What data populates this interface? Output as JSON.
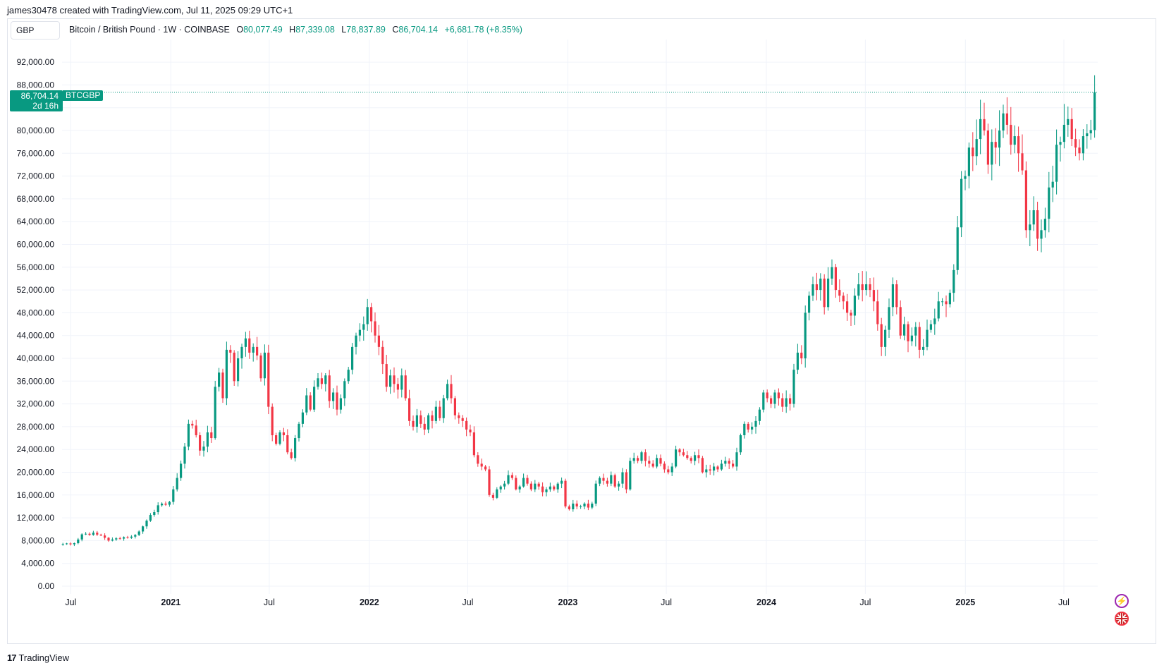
{
  "header": {
    "credit": "james30478 created with TradingView.com, Jul 11, 2025 09:29 UTC+1"
  },
  "toolbar": {
    "currency": "GBP"
  },
  "legend": {
    "symbol_desc": "Bitcoin / British Pound · 1W · COINBASE",
    "open_key": "O",
    "open": "80,077.49",
    "high_key": "H",
    "high": "87,339.08",
    "low_key": "L",
    "low": "78,837.89",
    "close_key": "C",
    "close": "86,704.14",
    "change": "+6,681.78 (+8.35%)"
  },
  "last_price": {
    "price": "86,704.14",
    "countdown": "2d 16h",
    "symbol": "BTCGBP"
  },
  "footer": {
    "brand_mark": "17",
    "brand_name": "TradingView"
  },
  "icons": {
    "lightning": "lightning-icon",
    "flag": "uk-flag-icon"
  },
  "colors": {
    "up": "#089981",
    "down": "#f23645",
    "grid": "#f0f3fa",
    "axis_text": "#131722"
  },
  "chart_data": {
    "type": "candlestick",
    "timeframe": "1W",
    "ylim": [
      0,
      96000
    ],
    "y_ticks": [
      "0.00",
      "4,000.00",
      "8,000.00",
      "12,000.00",
      "16,000.00",
      "20,000.00",
      "24,000.00",
      "28,000.00",
      "32,000.00",
      "36,000.00",
      "40,000.00",
      "44,000.00",
      "48,000.00",
      "52,000.00",
      "56,000.00",
      "60,000.00",
      "64,000.00",
      "68,000.00",
      "72,000.00",
      "76,000.00",
      "80,000.00",
      "84,000.00",
      "88,000.00",
      "92,000.00"
    ],
    "x_ticks": [
      {
        "label": "Jul",
        "date": "2020-07-01",
        "bold": false
      },
      {
        "label": "2021",
        "date": "2021-01-01",
        "bold": true
      },
      {
        "label": "Jul",
        "date": "2021-07-01",
        "bold": false
      },
      {
        "label": "2022",
        "date": "2022-01-01",
        "bold": true
      },
      {
        "label": "Jul",
        "date": "2022-07-01",
        "bold": false
      },
      {
        "label": "2023",
        "date": "2023-01-01",
        "bold": true
      },
      {
        "label": "Jul",
        "date": "2023-07-01",
        "bold": false
      },
      {
        "label": "2024",
        "date": "2024-01-01",
        "bold": true
      },
      {
        "label": "Jul",
        "date": "2024-07-01",
        "bold": false
      },
      {
        "label": "2025",
        "date": "2025-01-01",
        "bold": true
      },
      {
        "label": "Jul",
        "date": "2025-07-01",
        "bold": false
      }
    ],
    "x_start": "2020-06-15",
    "last_close": 86704.14,
    "closes": [
      7400,
      7500,
      7350,
      7550,
      8200,
      9100,
      9200,
      9000,
      9400,
      9050,
      8900,
      8500,
      8000,
      8200,
      8400,
      8350,
      8600,
      8500,
      8700,
      9000,
      9600,
      10500,
      11500,
      12500,
      13000,
      14200,
      14500,
      14300,
      14800,
      17000,
      19000,
      21500,
      24500,
      28500,
      28200,
      26500,
      23800,
      24500,
      27000,
      26000,
      35000,
      37500,
      33000,
      41500,
      41000,
      36000,
      40000,
      42000,
      43500,
      41000,
      42000,
      40500,
      36500,
      41000,
      31500,
      26500,
      25000,
      27000,
      26500,
      23500,
      22500,
      26000,
      28500,
      30500,
      33500,
      31000,
      35000,
      36500,
      35500,
      37000,
      32500,
      34000,
      31000,
      33000,
      36000,
      38000,
      42000,
      44000,
      45000,
      46000,
      49000,
      46500,
      44000,
      42000,
      39000,
      35000,
      37000,
      35500,
      34500,
      37000,
      33000,
      29000,
      28000,
      30000,
      28500,
      27500,
      30000,
      29000,
      31500,
      29500,
      33000,
      35500,
      33000,
      30000,
      29500,
      29000,
      27500,
      27000,
      23000,
      21500,
      21000,
      20500,
      16000,
      15500,
      17000,
      17500,
      18000,
      19500,
      19000,
      17000,
      17500,
      19000,
      18000,
      17000,
      18000,
      17500,
      16500,
      17000,
      17500,
      17000,
      18000,
      18500,
      14000,
      13500,
      14500,
      14000,
      14000,
      14500,
      13800,
      14500,
      18000,
      19000,
      18500,
      18000,
      19500,
      17500,
      18000,
      20000,
      17000,
      22000,
      22500,
      22000,
      23500,
      22000,
      21500,
      21000,
      22500,
      21500,
      20500,
      20000,
      21000,
      24000,
      23500,
      23000,
      22500,
      22000,
      23000,
      22500,
      20000,
      20500,
      20300,
      21000,
      20500,
      21500,
      22000,
      21500,
      21000,
      23500,
      26500,
      28500,
      27500,
      28000,
      29000,
      31000,
      34000,
      33000,
      32000,
      34000,
      33000,
      31500,
      33000,
      32000,
      38000,
      41000,
      40000,
      48000,
      51000,
      53000,
      52000,
      54000,
      49000,
      54000,
      56000,
      52000,
      51000,
      50000,
      48000,
      47500,
      51000,
      53000,
      52000,
      53000,
      52000,
      50000,
      46000,
      42000,
      45000,
      49000,
      53000,
      49000,
      44000,
      46000,
      43000,
      44000,
      45500,
      41500,
      42000,
      45000,
      46000,
      47000,
      50000,
      50000,
      49500,
      51500,
      55500,
      63000,
      71500,
      72000,
      77000,
      75500,
      78500,
      82000,
      80000,
      74000,
      78000,
      77000,
      80000,
      83000,
      81000,
      77500,
      79000,
      76000,
      73000,
      62500,
      63500,
      66000,
      61000,
      62500,
      64500,
      70000,
      71000,
      77500,
      78000,
      81000,
      82000,
      78500,
      77000,
      76000,
      79000,
      79500,
      80077.49,
      86704.14
    ]
  }
}
